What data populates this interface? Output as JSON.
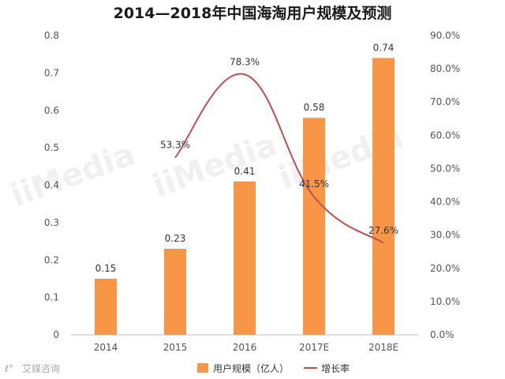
{
  "chart_data": {
    "type": "bar",
    "title": "2014—2018年中国海淘用户规模及预测",
    "categories": [
      "2014",
      "2015",
      "2016",
      "2017E",
      "2018E"
    ],
    "series": [
      {
        "name": "用户规模（亿人）",
        "type": "bar",
        "axis": "left",
        "values": [
          0.15,
          0.23,
          0.41,
          0.58,
          0.74
        ],
        "labels": [
          "0.15",
          "0.23",
          "0.41",
          "0.58",
          "0.74"
        ],
        "color": "#f79646"
      },
      {
        "name": "增长率",
        "type": "line",
        "axis": "right",
        "values": [
          null,
          53.3,
          78.3,
          41.5,
          27.6
        ],
        "labels": [
          "",
          "53.3%",
          "78.3%",
          "41.5%",
          "27.6%"
        ],
        "color": "#c0504d"
      }
    ],
    "y_left": {
      "ylim": [
        0,
        0.8
      ],
      "ticks": [
        "0",
        "0.1",
        "0.2",
        "0.3",
        "0.4",
        "0.5",
        "0.6",
        "0.7",
        "0.8"
      ]
    },
    "y_right": {
      "ylim": [
        0,
        90
      ],
      "ticks": [
        "0.0%",
        "10.0%",
        "20.0%",
        "30.0%",
        "40.0%",
        "50.0%",
        "60.0%",
        "70.0%",
        "80.0%",
        "90.0%"
      ]
    },
    "legend_position": "bottom",
    "grid": false
  },
  "watermark": {
    "brand": "iiMedia",
    "footer": "艾媒咨询"
  }
}
